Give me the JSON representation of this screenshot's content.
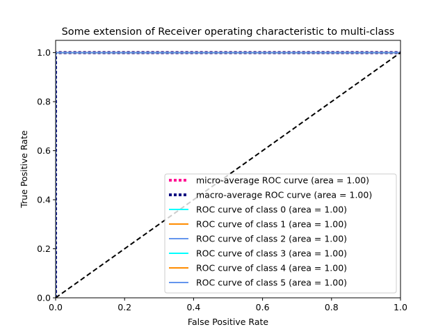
{
  "chart_data": {
    "type": "line",
    "title": "Some extension of Receiver operating characteristic to multi-class",
    "xlabel": "False Positive Rate",
    "ylabel": "True Positive Rate",
    "xlim": [
      0.0,
      1.0
    ],
    "ylim": [
      0.0,
      1.05
    ],
    "xticks": [
      "0.0",
      "0.2",
      "0.4",
      "0.6",
      "0.8",
      "1.0"
    ],
    "yticks": [
      "0.0",
      "0.2",
      "0.4",
      "0.6",
      "0.8",
      "1.0"
    ],
    "grid": false,
    "legend_position": "lower right",
    "series": [
      {
        "name": "micro-average ROC curve (area = 1.00)",
        "color": "#ff1493",
        "style": "dotted",
        "width": 4,
        "x": [
          0,
          0,
          1
        ],
        "y": [
          0,
          1,
          1
        ]
      },
      {
        "name": "macro-average ROC curve (area = 1.00)",
        "color": "#000080",
        "style": "dotted",
        "width": 4,
        "x": [
          0,
          0,
          1
        ],
        "y": [
          0,
          1,
          1
        ]
      },
      {
        "name": "ROC curve of class 0 (area = 1.00)",
        "color": "#00ffff",
        "style": "solid",
        "width": 2,
        "x": [
          0,
          0,
          1
        ],
        "y": [
          0,
          1,
          1
        ]
      },
      {
        "name": "ROC curve of class 1 (area = 1.00)",
        "color": "#ff8c00",
        "style": "solid",
        "width": 2,
        "x": [
          0,
          0,
          1
        ],
        "y": [
          0,
          1,
          1
        ]
      },
      {
        "name": "ROC curve of class 2 (area = 1.00)",
        "color": "#6495ed",
        "style": "solid",
        "width": 2,
        "x": [
          0,
          0,
          1
        ],
        "y": [
          0,
          1,
          1
        ]
      },
      {
        "name": "ROC curve of class 3 (area = 1.00)",
        "color": "#00ffff",
        "style": "solid",
        "width": 2,
        "x": [
          0,
          0,
          1
        ],
        "y": [
          0,
          1,
          1
        ]
      },
      {
        "name": "ROC curve of class 4 (area = 1.00)",
        "color": "#ff8c00",
        "style": "solid",
        "width": 2,
        "x": [
          0,
          0,
          1
        ],
        "y": [
          0,
          1,
          1
        ]
      },
      {
        "name": "ROC curve of class 5 (area = 1.00)",
        "color": "#6495ed",
        "style": "solid",
        "width": 2,
        "x": [
          0,
          0,
          1
        ],
        "y": [
          0,
          1,
          1
        ]
      }
    ],
    "reference_line": {
      "color": "#000000",
      "style": "dashed",
      "x": [
        0,
        1
      ],
      "y": [
        0,
        1
      ]
    }
  }
}
